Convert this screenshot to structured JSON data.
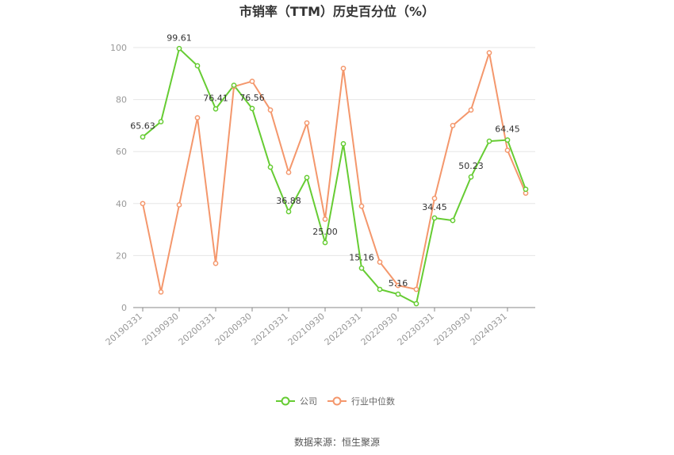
{
  "chart_data": {
    "type": "line",
    "title": "市销率（TTM）历史百分位（%）",
    "xlabel": "",
    "ylabel": "",
    "ylim": [
      0,
      100
    ],
    "yticks": [
      0,
      20,
      40,
      60,
      80,
      100
    ],
    "grid": true,
    "legend_position": "bottom",
    "x": [
      "20190331",
      "20190630",
      "20190930",
      "20191231",
      "20200331",
      "20200630",
      "20200930",
      "20201231",
      "20210331",
      "20210630",
      "20210930",
      "20211231",
      "20220331",
      "20220630",
      "20220930",
      "20221231",
      "20230331",
      "20230630",
      "20230930",
      "20231231",
      "20240331",
      "20240630"
    ],
    "x_tick_labels": [
      "20190331",
      "20190930",
      "20200331",
      "20200930",
      "20210331",
      "20210930",
      "20220331",
      "20220930",
      "20230331",
      "20230930",
      "20240331"
    ],
    "series": [
      {
        "name": "公司",
        "color": "#66cc33",
        "values": [
          65.63,
          71.5,
          99.61,
          93.0,
          76.41,
          85.5,
          76.56,
          54.0,
          36.88,
          50.0,
          25.0,
          63.0,
          15.16,
          7.0,
          5.16,
          1.5,
          34.45,
          33.5,
          50.23,
          64.0,
          64.45,
          45.5
        ],
        "data_labels": [
          {
            "index": 0,
            "text": "65.63"
          },
          {
            "index": 2,
            "text": "99.61"
          },
          {
            "index": 4,
            "text": "76.41"
          },
          {
            "index": 6,
            "text": "76.56"
          },
          {
            "index": 8,
            "text": "36.88"
          },
          {
            "index": 10,
            "text": "25.00"
          },
          {
            "index": 12,
            "text": "15.16"
          },
          {
            "index": 14,
            "text": "5.16"
          },
          {
            "index": 16,
            "text": "34.45"
          },
          {
            "index": 18,
            "text": "50.23"
          },
          {
            "index": 20,
            "text": "64.45"
          }
        ]
      },
      {
        "name": "行业中位数",
        "color": "#f4976c",
        "values": [
          40.0,
          6.0,
          39.5,
          73.0,
          17.0,
          85.0,
          87.0,
          76.0,
          52.0,
          71.0,
          34.0,
          92.0,
          39.0,
          17.5,
          8.5,
          7.0,
          42.0,
          70.0,
          76.0,
          98.0,
          60.5,
          44.0
        ]
      }
    ]
  },
  "source": "数据来源：恒生聚源"
}
